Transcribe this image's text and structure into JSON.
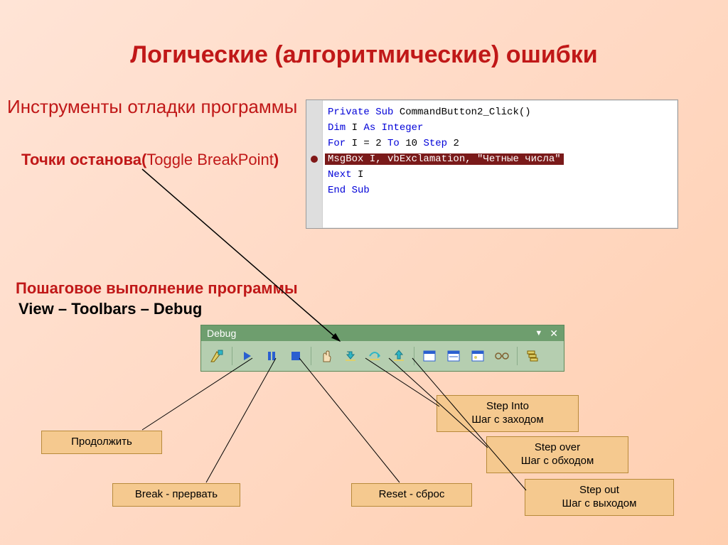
{
  "colors": {
    "title": "#c01818",
    "sub1": "#c01818",
    "sub2": "#c01818",
    "sub3": "#c01818",
    "sub4": "#000000",
    "code_kw": "#0000d8",
    "code_text": "#000000",
    "bp_bg": "#7a1a1a",
    "bp_dot": "#801818",
    "tb_title_bg": "#6e9e6e",
    "tb_title_fg": "#ffffff",
    "tb_body_bg": "#b5ceb0",
    "cbox_bg": "#f5c98f",
    "line": "#000000",
    "icon_blue": "#2a5fd0",
    "icon_cyan": "#2fb6c6",
    "icon_yellow": "#ded06a"
  },
  "title": "Логические (алгоритмические) ошибки",
  "sub1": "Инструменты отладки программы",
  "sub2_bold": "Точки останова(",
  "sub2_paren": "Toggle BreakPoint",
  "sub2_close": ")",
  "sub3": "Пошаговое  выполнение программы",
  "sub4": "View – Toolbars – Debug",
  "code": {
    "lines": [
      {
        "segments": [
          {
            "t": "Private Sub",
            "c": "kw"
          },
          {
            "t": " CommandButton2_Click()",
            "c": "txt"
          }
        ]
      },
      {
        "segments": [
          {
            "t": "Dim",
            "c": "kw"
          },
          {
            "t": " I ",
            "c": "txt"
          },
          {
            "t": "As Integer",
            "c": "kw"
          }
        ]
      },
      {
        "segments": [
          {
            "t": "For",
            "c": "kw"
          },
          {
            "t": " I = 2 ",
            "c": "txt"
          },
          {
            "t": "To",
            "c": "kw"
          },
          {
            "t": " 10 ",
            "c": "txt"
          },
          {
            "t": "Step",
            "c": "kw"
          },
          {
            "t": " 2",
            "c": "txt"
          }
        ]
      },
      {
        "hl": true,
        "text": "MsgBox I, vbExclamation, \"Четные числа\""
      },
      {
        "segments": [
          {
            "t": "Next",
            "c": "kw"
          },
          {
            "t": " I",
            "c": "txt"
          }
        ]
      },
      {
        "segments": [
          {
            "t": "",
            "c": "txt"
          }
        ]
      },
      {
        "segments": [
          {
            "t": "End Sub",
            "c": "kw"
          }
        ]
      }
    ],
    "bp_row": 3
  },
  "toolbar": {
    "title": "Debug",
    "icons": [
      {
        "name": "design-mode-icon",
        "type": "design"
      },
      {
        "sep": true
      },
      {
        "name": "continue-icon",
        "type": "play"
      },
      {
        "name": "break-icon",
        "type": "pause"
      },
      {
        "name": "reset-icon",
        "type": "stop"
      },
      {
        "sep": true
      },
      {
        "name": "toggle-breakpoint-icon",
        "type": "hand"
      },
      {
        "name": "step-into-icon",
        "type": "stepin"
      },
      {
        "name": "step-over-icon",
        "type": "stepover"
      },
      {
        "name": "step-out-icon",
        "type": "stepout"
      },
      {
        "sep": true
      },
      {
        "name": "locals-window-icon",
        "type": "win1"
      },
      {
        "name": "immediate-window-icon",
        "type": "win2"
      },
      {
        "name": "watch-window-icon",
        "type": "win3"
      },
      {
        "name": "quick-watch-icon",
        "type": "glasses"
      },
      {
        "sep": true
      },
      {
        "name": "call-stack-icon",
        "type": "stack"
      }
    ]
  },
  "callouts": {
    "continue": "Продолжить",
    "break": "Break - прервать",
    "reset": "Reset - сброс",
    "stepinto_l1": "Step Into",
    "stepinto_l2": "Шаг с заходом",
    "stepover_l1": "Step over",
    "stepover_l2": "Шаг с обходом",
    "stepout_l1": "Step out",
    "stepout_l2": "Шаг с выходом"
  }
}
